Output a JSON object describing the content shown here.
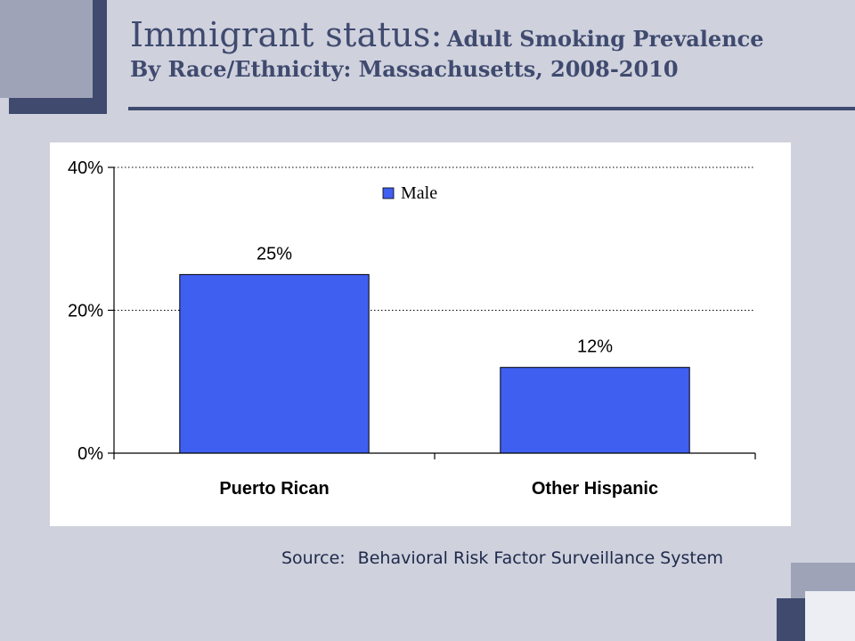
{
  "slide": {
    "title_main": "Immigrant status:",
    "title_sub_line1": "Adult Smoking Prevalence",
    "title_line2": "By Race/Ethnicity: Massachusetts, 2008-2010",
    "source_label": "Source:",
    "source_text": "Behavioral Risk Factor Surveillance System"
  },
  "colors": {
    "background": "#cfd1dd",
    "accent_dark": "#3f4a6e",
    "accent_light": "#9ea3b8",
    "bar_fill": "#3f5ff0"
  },
  "chart_data": {
    "type": "bar",
    "categories": [
      "Puerto Rican",
      "Other Hispanic"
    ],
    "series": [
      {
        "name": "Male",
        "values": [
          25,
          12
        ],
        "data_labels": [
          "25%",
          "12%"
        ]
      }
    ],
    "ylim": [
      0,
      40
    ],
    "yticks": [
      0,
      20,
      40
    ],
    "ytick_labels": [
      "0%",
      "20%",
      "40%"
    ],
    "grid": "horizontal dotted",
    "legend_position": "top-center"
  }
}
